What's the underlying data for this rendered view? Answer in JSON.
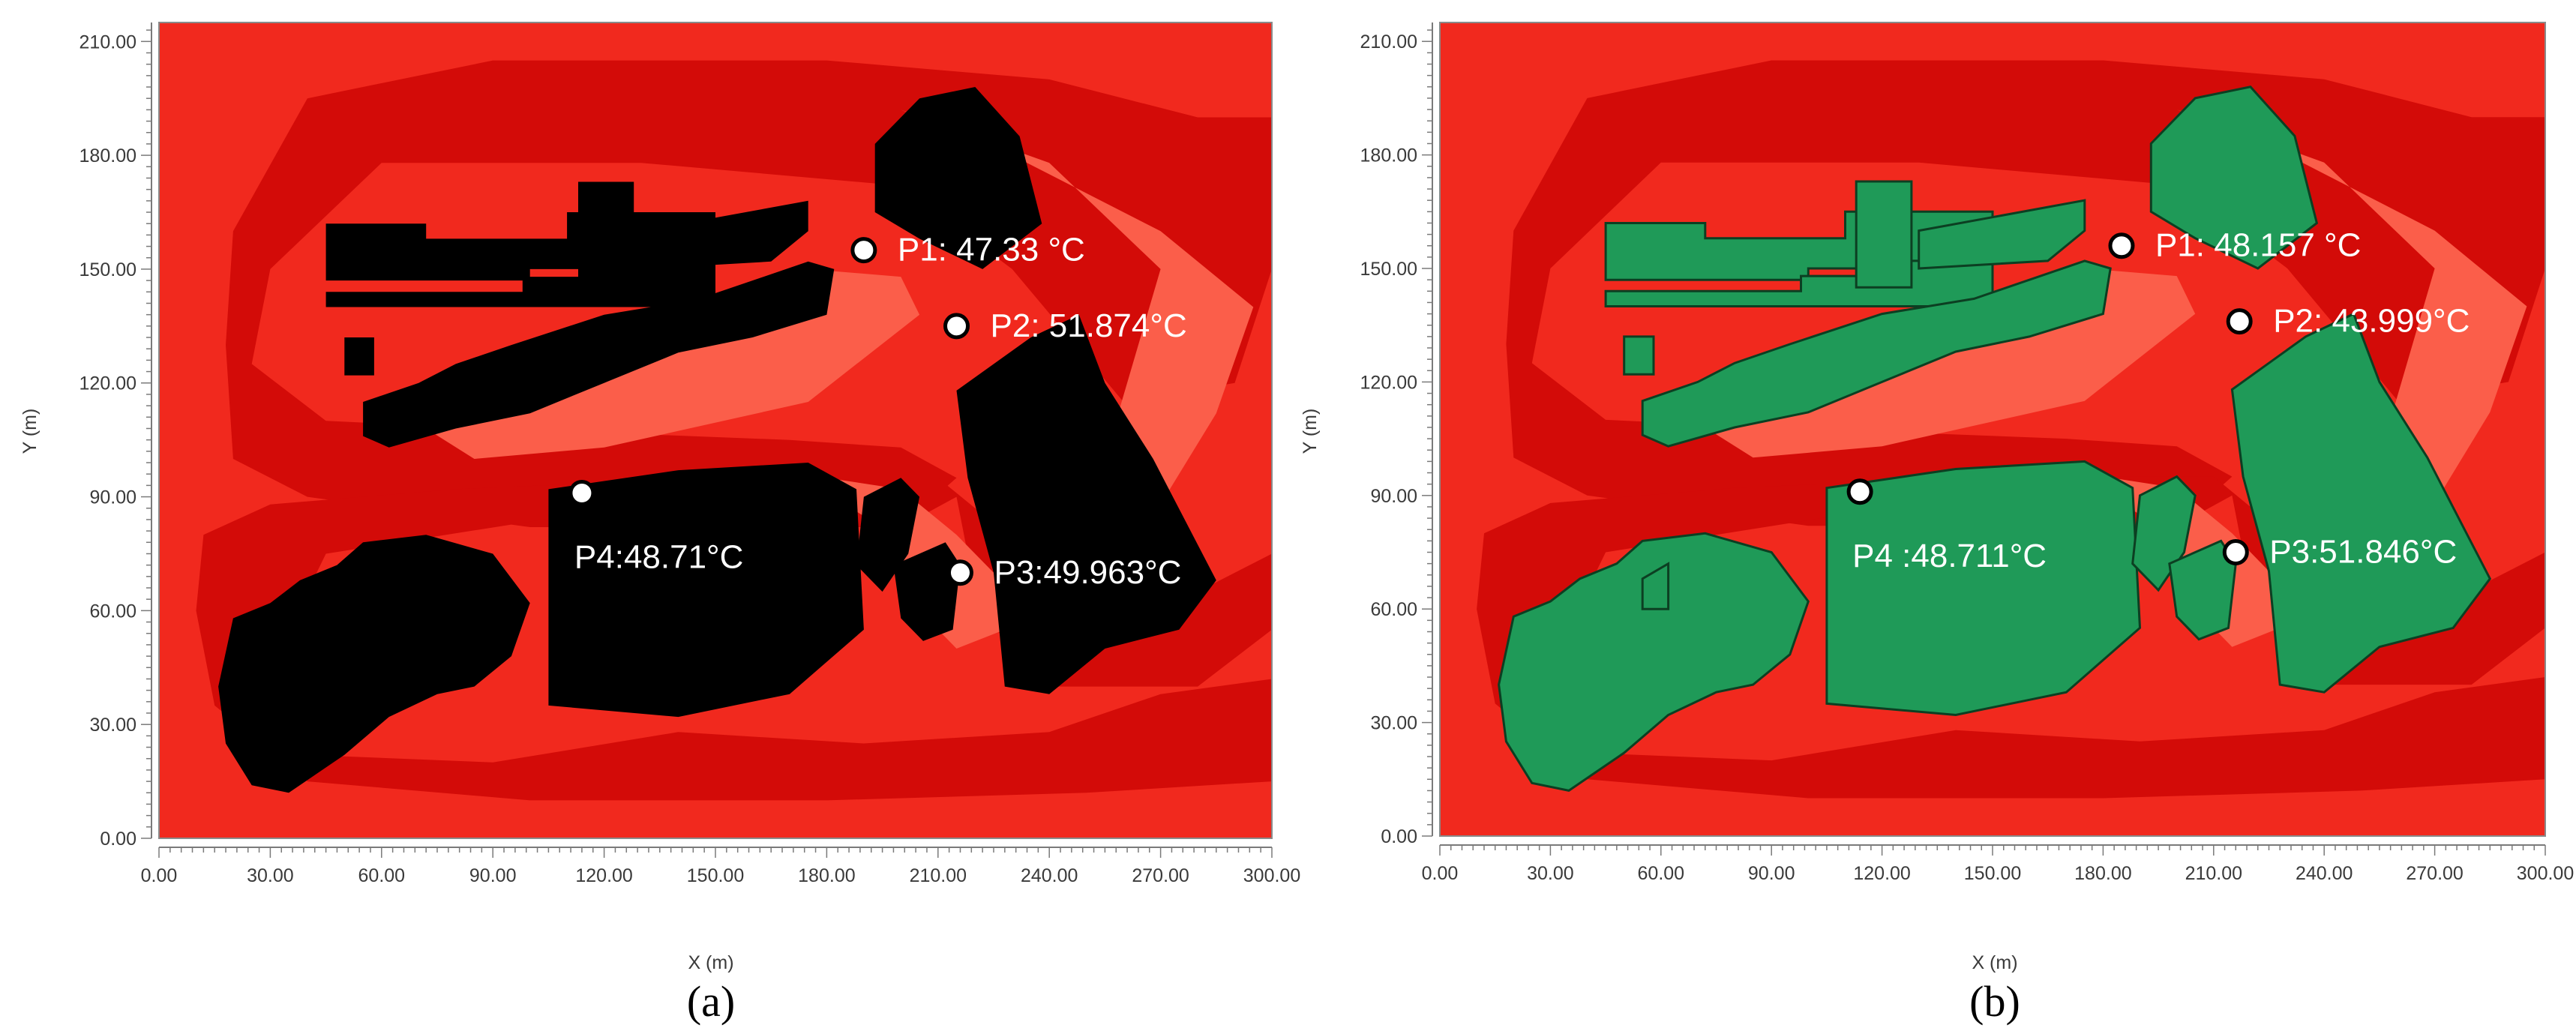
{
  "chart_data": [
    {
      "type": "heatmap",
      "panel_label": "(a)",
      "xlabel": "X (m)",
      "ylabel": "Y (m)",
      "xlim": [
        0,
        300
      ],
      "ylim": [
        0,
        215
      ],
      "x_ticks": [
        "0.00",
        "30.00",
        "60.00",
        "90.00",
        "120.00",
        "150.00",
        "180.00",
        "210.00",
        "240.00",
        "270.00",
        "300.00"
      ],
      "y_ticks": [
        "0.00",
        "30.00",
        "60.00",
        "90.00",
        "120.00",
        "150.00",
        "180.00",
        "210.00"
      ],
      "building_color": "#000000",
      "zone_colors": {
        "base": "#f1291e",
        "dark": "#d30b08",
        "light": "#fb5e4a"
      },
      "probes": [
        {
          "id": "P1",
          "x": 190,
          "y": 155,
          "label": "P1: 47.33 °C"
        },
        {
          "id": "P2",
          "x": 215,
          "y": 135,
          "label": "P2: 51.874°C"
        },
        {
          "id": "P3",
          "x": 216,
          "y": 70,
          "label": "P3:49.963°C"
        },
        {
          "id": "P4",
          "x": 114,
          "y": 91,
          "label": "P4:48.71°C"
        }
      ]
    },
    {
      "type": "heatmap",
      "panel_label": "(b)",
      "xlabel": "X (m)",
      "ylabel": "Y (m)",
      "xlim": [
        0,
        300
      ],
      "ylim": [
        0,
        215
      ],
      "x_ticks": [
        "0.00",
        "30.00",
        "60.00",
        "90.00",
        "120.00",
        "150.00",
        "180.00",
        "210.00",
        "240.00",
        "270.00",
        "300.00"
      ],
      "y_ticks": [
        "0.00",
        "30.00",
        "60.00",
        "90.00",
        "120.00",
        "150.00",
        "180.00",
        "210.00"
      ],
      "building_color": "#1f9a58",
      "zone_colors": {
        "base": "#f1291e",
        "dark": "#d30b08",
        "light": "#fb5e4a"
      },
      "probes": [
        {
          "id": "P1",
          "x": 185,
          "y": 156,
          "label": "P1: 48.157 °C"
        },
        {
          "id": "P2",
          "x": 217,
          "y": 136,
          "label": "P2: 43.999°C"
        },
        {
          "id": "P3",
          "x": 216,
          "y": 75,
          "label": "P3:51.846°C"
        },
        {
          "id": "P4",
          "x": 114,
          "y": 91,
          "label": "P4 :48.711°C"
        }
      ]
    }
  ]
}
